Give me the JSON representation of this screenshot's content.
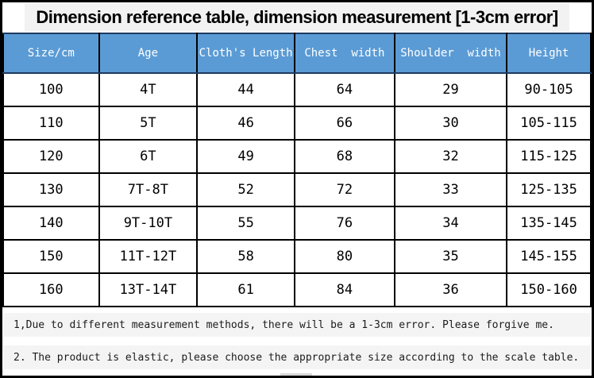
{
  "title": "Dimension reference table, dimension measurement [1-3cm error]",
  "colors": {
    "header_bg": "#5b9bd5",
    "header_text": "#ffffff",
    "cell_border": "#000000",
    "header_line": "#1f3a60",
    "band_bg": "#f2f2f2",
    "note_band_bg": "#f4f4f4"
  },
  "chart_data": {
    "type": "table",
    "title": "Dimension reference table, dimension measurement [1-3cm error]",
    "columns": [
      "Size/cm",
      "Age",
      "Cloth's Length",
      "Chest  width",
      "Shoulder  width",
      "Height"
    ],
    "rows": [
      [
        "100",
        "4T",
        "44",
        "64",
        "29",
        "90-105"
      ],
      [
        "110",
        "5T",
        "46",
        "66",
        "30",
        "105-115"
      ],
      [
        "120",
        "6T",
        "49",
        "68",
        "32",
        "115-125"
      ],
      [
        "130",
        "7T-8T",
        "52",
        "72",
        "33",
        "125-135"
      ],
      [
        "140",
        "9T-10T",
        "55",
        "76",
        "34",
        "135-145"
      ],
      [
        "150",
        "11T-12T",
        "58",
        "80",
        "35",
        "145-155"
      ],
      [
        "160",
        "13T-14T",
        "61",
        "84",
        "36",
        "150-160"
      ]
    ],
    "units": "cm",
    "error_note": "1-3cm"
  },
  "notes": [
    "1,Due to different measurement methods, there will be a 1-3cm error. Please forgive me.",
    "2. The product is elastic, please choose the appropriate size according to the scale table."
  ]
}
